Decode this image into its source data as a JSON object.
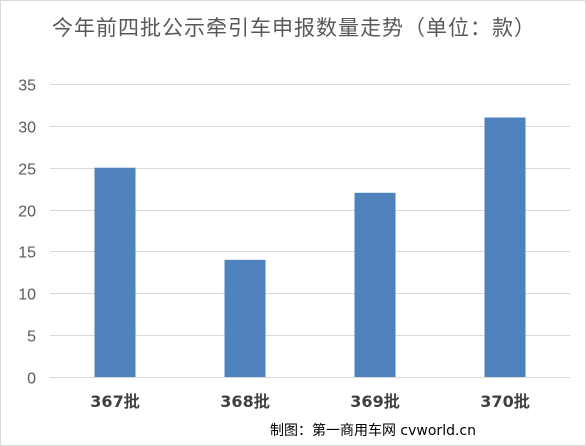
{
  "chart_data": {
    "type": "bar",
    "title": "今年前四批公示牵引车申报数量走势（单位：款）",
    "categories": [
      "367批",
      "368批",
      "369批",
      "370批"
    ],
    "values": [
      25,
      14,
      22,
      31
    ],
    "ylim": [
      0,
      35
    ],
    "yticks": [
      0,
      5,
      10,
      15,
      20,
      25,
      30,
      35
    ],
    "ytick_labels": [
      "0",
      "5",
      "10",
      "15",
      "20",
      "25",
      "30",
      "35"
    ],
    "grid": true,
    "legend": "none",
    "bar_color": "#4f81bd",
    "grid_color": "#d9d9d9"
  },
  "credit": "制图：第一商用车网 cvworld.cn"
}
